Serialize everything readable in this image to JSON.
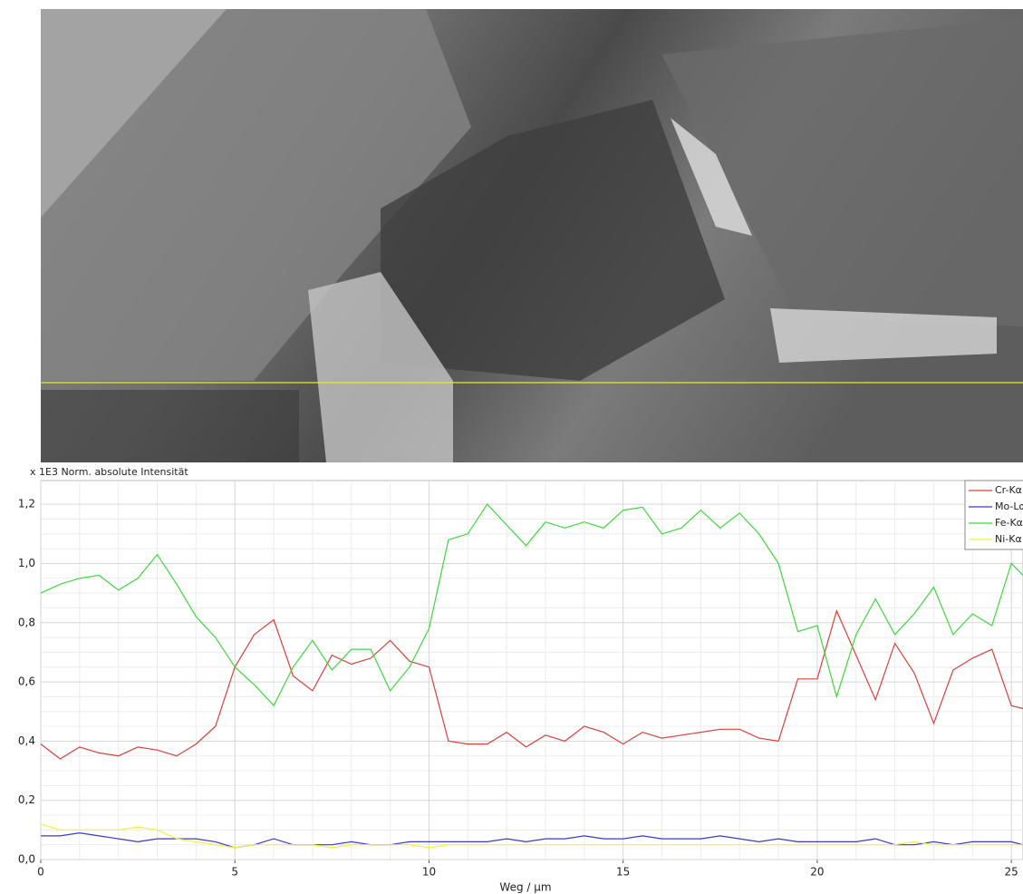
{
  "chart_data": {
    "type": "line",
    "title": "x 1E3 Norm. absolute Intensität",
    "x_label": "Weg / µm",
    "x": [
      0,
      0.5,
      1,
      1.5,
      2,
      2.5,
      3,
      3.5,
      4,
      4.5,
      5,
      5.5,
      6,
      6.5,
      7,
      7.5,
      8,
      8.5,
      9,
      9.5,
      10,
      10.5,
      11,
      11.5,
      12,
      12.5,
      13,
      13.5,
      14,
      14.5,
      15,
      15.5,
      16,
      16.5,
      17,
      17.5,
      18,
      18.5,
      19,
      19.5,
      20,
      20.5,
      21,
      21.5,
      22,
      22.5,
      23,
      23.5,
      24,
      24.5,
      25,
      25.3
    ],
    "series": [
      {
        "name": "Cr-Kα",
        "color": "#d9413c",
        "values": [
          0.39,
          0.34,
          0.38,
          0.36,
          0.35,
          0.38,
          0.37,
          0.35,
          0.39,
          0.45,
          0.65,
          0.76,
          0.81,
          0.62,
          0.57,
          0.69,
          0.66,
          0.68,
          0.74,
          0.67,
          0.65,
          0.4,
          0.39,
          0.39,
          0.43,
          0.38,
          0.42,
          0.4,
          0.45,
          0.43,
          0.39,
          0.43,
          0.41,
          0.42,
          0.43,
          0.44,
          0.44,
          0.41,
          0.4,
          0.61,
          0.61,
          0.84,
          0.69,
          0.54,
          0.73,
          0.63,
          0.46,
          0.64,
          0.68,
          0.71,
          0.52,
          0.51
        ]
      },
      {
        "name": "Mo-Lα",
        "color": "#3a3ac8",
        "values": [
          0.08,
          0.08,
          0.09,
          0.08,
          0.07,
          0.06,
          0.07,
          0.07,
          0.07,
          0.06,
          0.04,
          0.05,
          0.07,
          0.05,
          0.05,
          0.05,
          0.06,
          0.05,
          0.05,
          0.06,
          0.06,
          0.06,
          0.06,
          0.06,
          0.07,
          0.06,
          0.07,
          0.07,
          0.08,
          0.07,
          0.07,
          0.08,
          0.07,
          0.07,
          0.07,
          0.08,
          0.07,
          0.06,
          0.07,
          0.06,
          0.06,
          0.06,
          0.06,
          0.07,
          0.05,
          0.05,
          0.06,
          0.05,
          0.06,
          0.06,
          0.06,
          0.05
        ]
      },
      {
        "name": "Fe-Kα",
        "color": "#3ed83e",
        "values": [
          0.9,
          0.93,
          0.95,
          0.96,
          0.91,
          0.95,
          1.03,
          0.93,
          0.82,
          0.75,
          0.65,
          0.59,
          0.52,
          0.65,
          0.74,
          0.64,
          0.71,
          0.71,
          0.57,
          0.65,
          0.78,
          1.08,
          1.1,
          1.2,
          1.13,
          1.06,
          1.14,
          1.12,
          1.14,
          1.12,
          1.18,
          1.19,
          1.1,
          1.12,
          1.18,
          1.12,
          1.17,
          1.1,
          1.0,
          0.77,
          0.79,
          0.55,
          0.76,
          0.88,
          0.76,
          0.83,
          0.92,
          0.76,
          0.83,
          0.79,
          1.0,
          0.96
        ]
      },
      {
        "name": "Ni-Kα",
        "color": "#f2f23a",
        "values": [
          0.12,
          0.1,
          0.1,
          0.1,
          0.1,
          0.11,
          0.1,
          0.07,
          0.06,
          0.05,
          0.04,
          0.05,
          0.05,
          0.05,
          0.05,
          0.04,
          0.05,
          0.05,
          0.05,
          0.05,
          0.04,
          0.05,
          0.05,
          0.05,
          0.05,
          0.05,
          0.05,
          0.05,
          0.05,
          0.05,
          0.05,
          0.05,
          0.05,
          0.05,
          0.05,
          0.05,
          0.05,
          0.05,
          0.05,
          0.05,
          0.05,
          0.05,
          0.05,
          0.05,
          0.05,
          0.06,
          0.05,
          0.05,
          0.05,
          0.05,
          0.05,
          0.05
        ]
      }
    ],
    "xlim": [
      0,
      25.3
    ],
    "xticks": [
      0,
      5,
      10,
      15,
      20,
      25
    ],
    "ylim": [
      0,
      1.28
    ],
    "yticks": [
      {
        "value": 0,
        "label": "0,0"
      },
      {
        "value": 0.2,
        "label": "0,2"
      },
      {
        "value": 0.4,
        "label": "0,4"
      },
      {
        "value": 0.6,
        "label": "0,6"
      },
      {
        "value": 0.8,
        "label": "0,8"
      },
      {
        "value": 1.0,
        "label": "1,0"
      },
      {
        "value": 1.2,
        "label": "1,2"
      }
    ],
    "grid": true,
    "legend": "top-right"
  }
}
